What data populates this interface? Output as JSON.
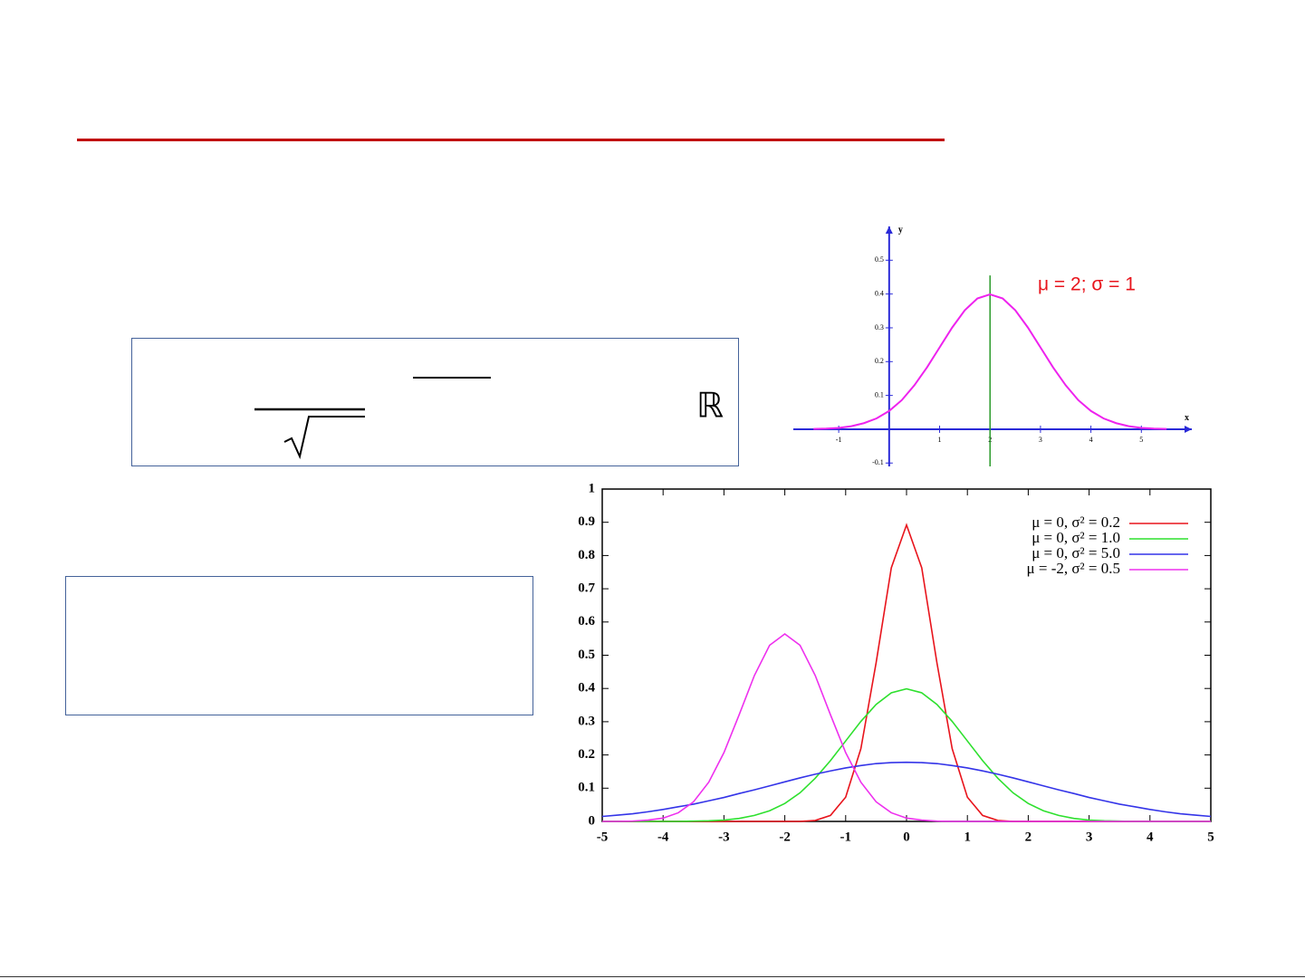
{
  "formula": {
    "symbol": "ℝ"
  },
  "chart_data": [
    {
      "type": "line",
      "annotation": "μ = 2; σ = 1",
      "x_label": "x",
      "y_label": "y",
      "x": [
        -1.5,
        -1.25,
        -1,
        -0.75,
        -0.5,
        -0.25,
        0,
        0.25,
        0.5,
        0.75,
        1,
        1.25,
        1.5,
        1.75,
        2,
        2.25,
        2.5,
        2.75,
        3,
        3.25,
        3.5,
        3.75,
        4,
        4.25,
        4.5,
        4.75,
        5,
        5.25,
        5.5
      ],
      "series": [
        {
          "color": "#ee22ee",
          "values": [
            0.001,
            0.002,
            0.004,
            0.009,
            0.018,
            0.032,
            0.054,
            0.086,
            0.13,
            0.183,
            0.242,
            0.301,
            0.352,
            0.387,
            0.399,
            0.387,
            0.352,
            0.301,
            0.242,
            0.183,
            0.13,
            0.086,
            0.054,
            0.032,
            0.018,
            0.009,
            0.004,
            0.002,
            0.001
          ]
        }
      ],
      "vline": 2,
      "vline_color": "#2a9a2a",
      "xlim": [
        -1.9,
        6
      ],
      "ylim": [
        -0.11,
        0.6
      ],
      "xticks": [
        -1,
        1,
        2,
        3,
        4,
        5
      ],
      "yticks": [
        -0.1,
        0.1,
        0.2,
        0.3,
        0.4,
        0.5
      ],
      "grid": false
    },
    {
      "type": "line",
      "x": [
        -5,
        -4.75,
        -4.5,
        -4.25,
        -4,
        -3.75,
        -3.5,
        -3.25,
        -3,
        -2.75,
        -2.5,
        -2.25,
        -2,
        -1.75,
        -1.5,
        -1.25,
        -1,
        -0.75,
        -0.5,
        -0.25,
        0,
        0.25,
        0.5,
        0.75,
        1,
        1.25,
        1.5,
        1.75,
        2,
        2.25,
        2.5,
        2.75,
        3,
        3.25,
        3.5,
        3.75,
        4,
        4.25,
        4.5,
        4.75,
        5
      ],
      "series": [
        {
          "name": "μ = 0, σ² = 0.2",
          "color": "#e8141c",
          "values": [
            0,
            0,
            0,
            0,
            0,
            0,
            0,
            0,
            0,
            0,
            0,
            0,
            0,
            0,
            0.003,
            0.018,
            0.073,
            0.219,
            0.477,
            0.763,
            0.892,
            0.763,
            0.477,
            0.219,
            0.073,
            0.018,
            0.003,
            0,
            0,
            0,
            0,
            0,
            0,
            0,
            0,
            0,
            0,
            0,
            0,
            0,
            0
          ]
        },
        {
          "name": "μ = 0, σ² = 1.0",
          "color": "#2ee02e",
          "values": [
            0,
            0,
            0,
            0,
            0,
            0,
            0.001,
            0.002,
            0.004,
            0.009,
            0.018,
            0.032,
            0.054,
            0.086,
            0.13,
            0.183,
            0.242,
            0.301,
            0.352,
            0.387,
            0.399,
            0.387,
            0.352,
            0.301,
            0.242,
            0.183,
            0.13,
            0.086,
            0.054,
            0.032,
            0.018,
            0.009,
            0.004,
            0.002,
            0.001,
            0,
            0,
            0,
            0,
            0,
            0
          ]
        },
        {
          "name": "μ = 0, σ² = 5.0",
          "color": "#3434e8",
          "values": [
            0.015,
            0.019,
            0.023,
            0.029,
            0.036,
            0.044,
            0.052,
            0.062,
            0.072,
            0.084,
            0.095,
            0.107,
            0.119,
            0.131,
            0.142,
            0.152,
            0.161,
            0.168,
            0.174,
            0.177,
            0.178,
            0.177,
            0.174,
            0.168,
            0.161,
            0.152,
            0.142,
            0.131,
            0.119,
            0.107,
            0.095,
            0.084,
            0.072,
            0.062,
            0.052,
            0.044,
            0.036,
            0.029,
            0.023,
            0.019,
            0.015
          ]
        },
        {
          "name": "μ = -2, σ² = 0.5",
          "color": "#ee30ee",
          "values": [
            0,
            0,
            0.001,
            0.004,
            0.01,
            0.026,
            0.059,
            0.118,
            0.207,
            0.321,
            0.439,
            0.53,
            0.564,
            0.53,
            0.439,
            0.321,
            0.207,
            0.118,
            0.059,
            0.026,
            0.01,
            0.004,
            0.001,
            0,
            0,
            0,
            0,
            0,
            0,
            0,
            0,
            0,
            0,
            0,
            0,
            0,
            0,
            0,
            0,
            0,
            0
          ]
        }
      ],
      "xlim": [
        -5,
        5
      ],
      "ylim": [
        0,
        1
      ],
      "xticks": [
        -5,
        -4,
        -3,
        -2,
        -1,
        0,
        1,
        2,
        3,
        4,
        5
      ],
      "yticks": [
        0,
        0.1,
        0.2,
        0.3,
        0.4,
        0.5,
        0.6,
        0.7,
        0.8,
        0.9,
        1
      ],
      "grid": false,
      "legend": "top-right"
    }
  ]
}
